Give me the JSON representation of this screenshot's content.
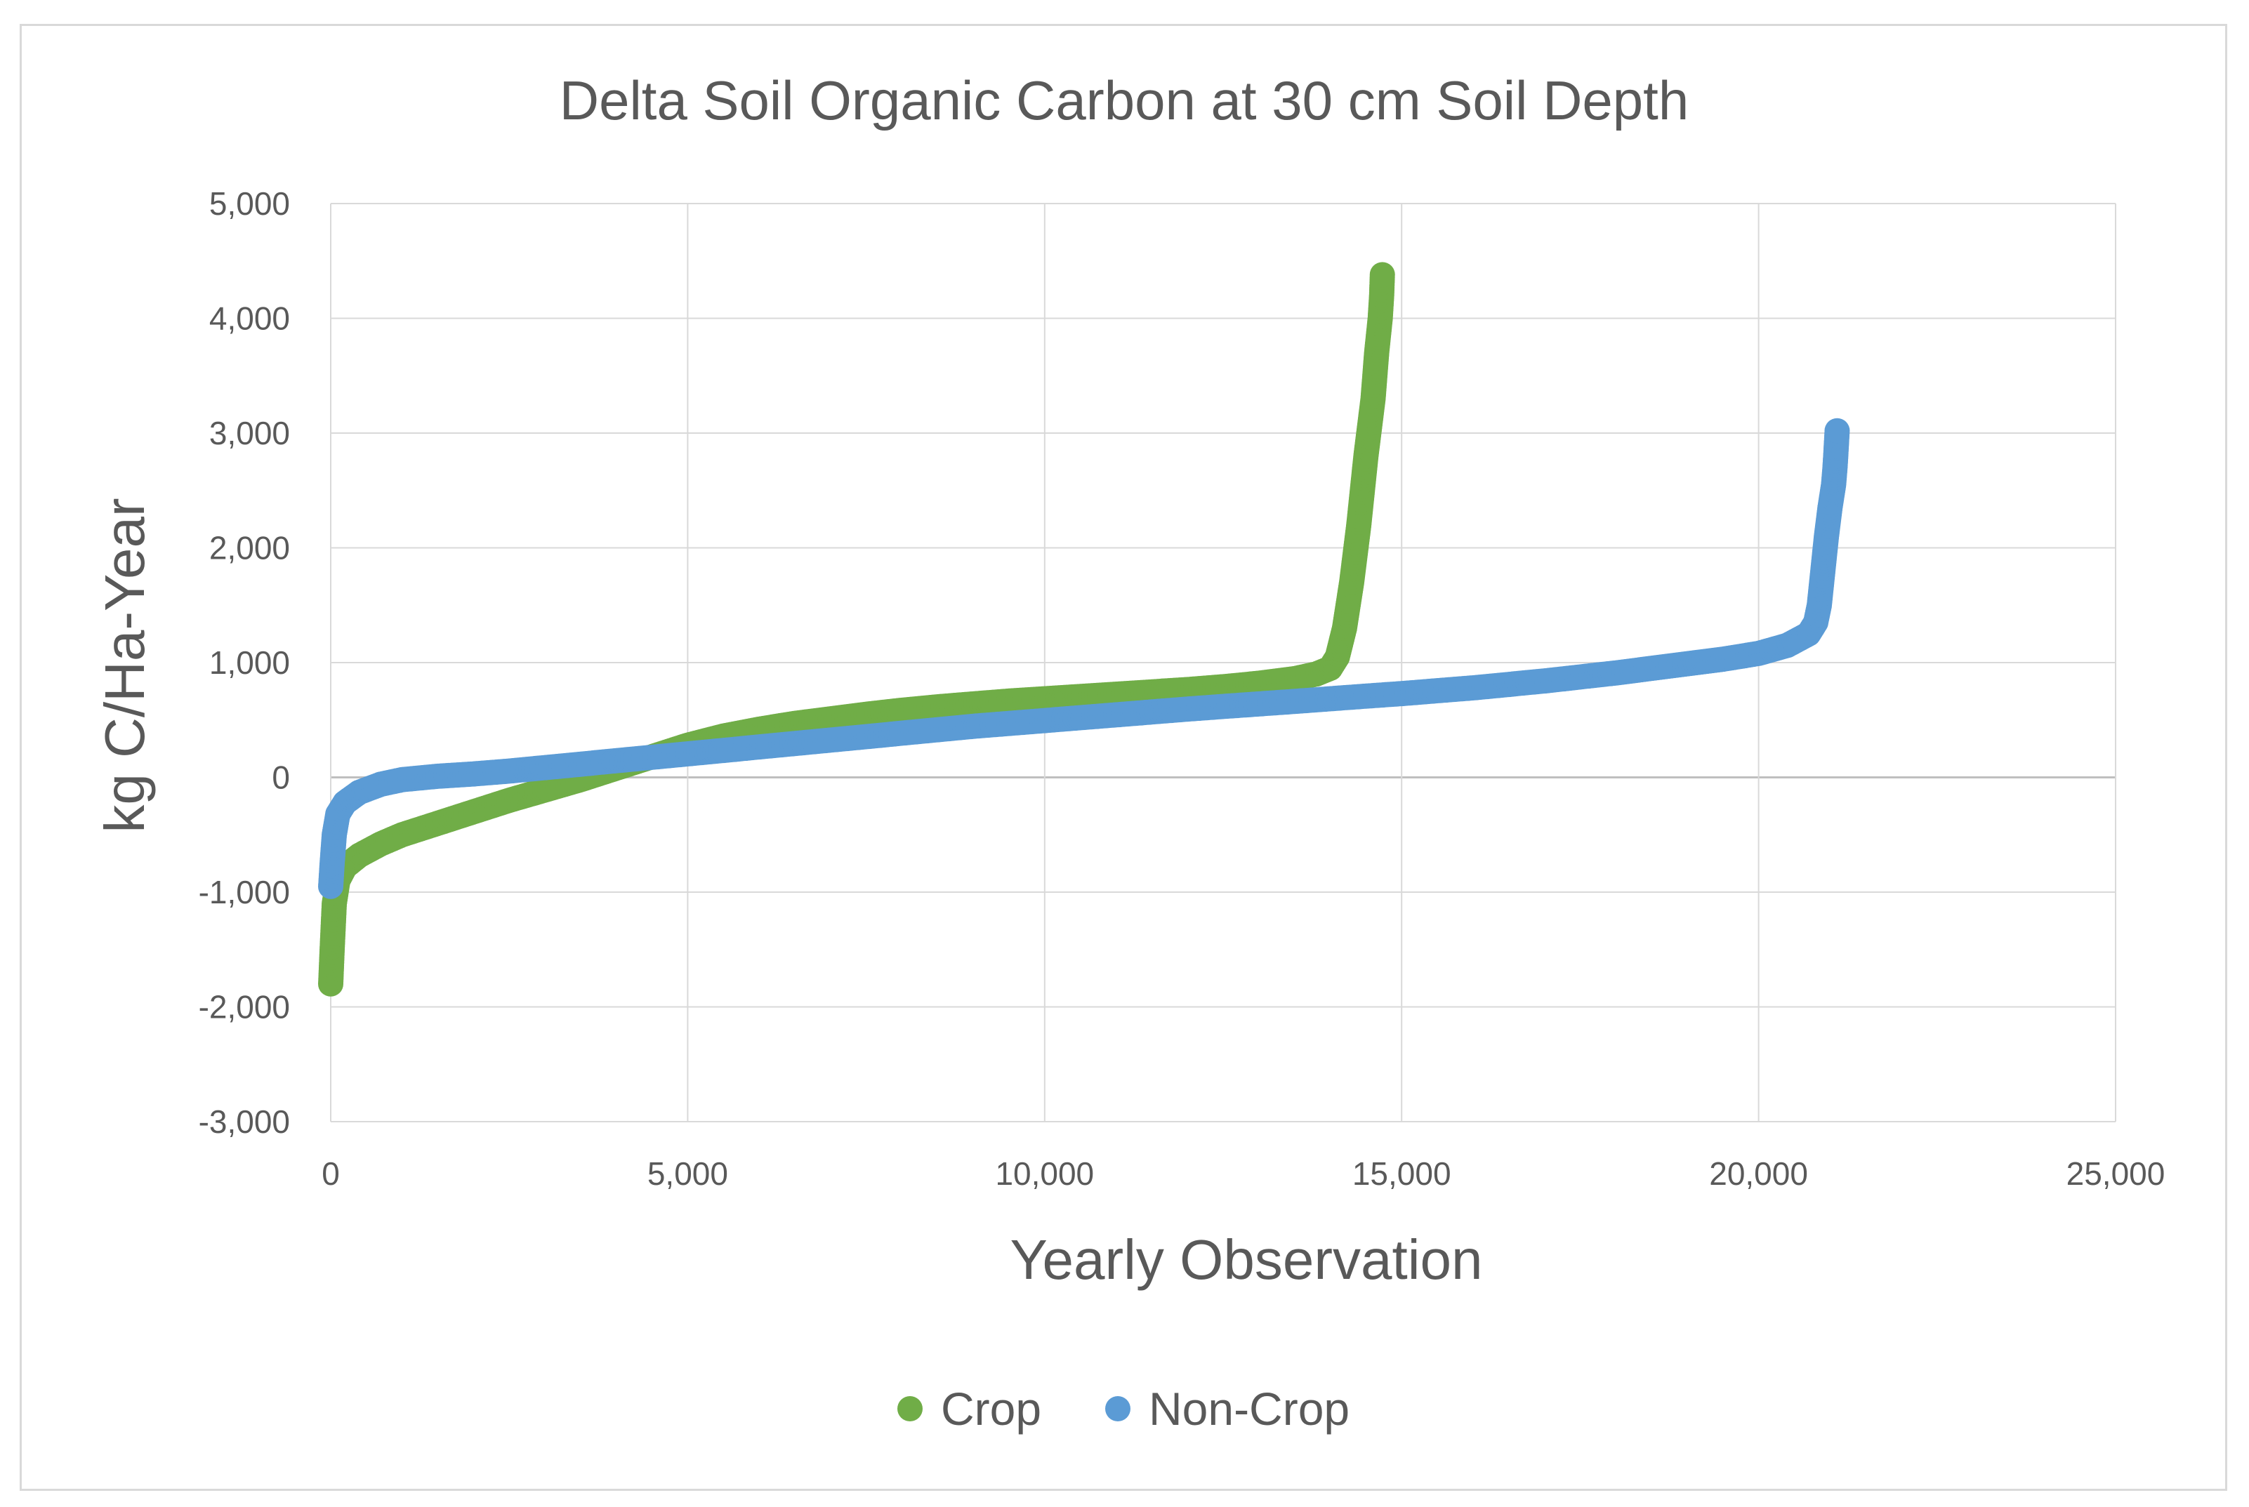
{
  "chart_data": {
    "type": "scatter",
    "title": "Delta Soil Organic Carbon at 30 cm Soil Depth",
    "xlabel": "Yearly Observation",
    "ylabel": "kg C/Ha-Year",
    "xlim": [
      0,
      25000
    ],
    "ylim": [
      -3000,
      5000
    ],
    "x_ticks": [
      0,
      5000,
      10000,
      15000,
      20000,
      25000
    ],
    "x_tick_labels": [
      "0",
      "5,000",
      "10,000",
      "15,000",
      "20,000",
      "25,000"
    ],
    "y_ticks": [
      -3000,
      -2000,
      -1000,
      0,
      1000,
      2000,
      3000,
      4000,
      5000
    ],
    "y_tick_labels": [
      "-3,000",
      "-2,000",
      "-1,000",
      "0",
      "1,000",
      "2,000",
      "3,000",
      "4,000",
      "5,000"
    ],
    "grid": true,
    "legend_position": "bottom",
    "series": [
      {
        "name": "Crop",
        "color": "#70ad47",
        "points": [
          [
            0,
            -1800
          ],
          [
            20,
            -1500
          ],
          [
            50,
            -1100
          ],
          [
            100,
            -900
          ],
          [
            200,
            -780
          ],
          [
            400,
            -680
          ],
          [
            700,
            -580
          ],
          [
            1000,
            -500
          ],
          [
            1500,
            -400
          ],
          [
            2000,
            -300
          ],
          [
            2500,
            -200
          ],
          [
            3000,
            -110
          ],
          [
            3500,
            -20
          ],
          [
            4000,
            80
          ],
          [
            4500,
            180
          ],
          [
            5000,
            280
          ],
          [
            5500,
            360
          ],
          [
            6000,
            420
          ],
          [
            6500,
            470
          ],
          [
            7000,
            510
          ],
          [
            7500,
            550
          ],
          [
            8000,
            585
          ],
          [
            8500,
            615
          ],
          [
            9000,
            640
          ],
          [
            9500,
            665
          ],
          [
            10000,
            685
          ],
          [
            10500,
            705
          ],
          [
            11000,
            725
          ],
          [
            11500,
            745
          ],
          [
            12000,
            765
          ],
          [
            12500,
            790
          ],
          [
            13000,
            820
          ],
          [
            13500,
            860
          ],
          [
            13800,
            900
          ],
          [
            14000,
            950
          ],
          [
            14100,
            1050
          ],
          [
            14200,
            1300
          ],
          [
            14300,
            1700
          ],
          [
            14400,
            2200
          ],
          [
            14500,
            2800
          ],
          [
            14600,
            3300
          ],
          [
            14650,
            3700
          ],
          [
            14700,
            4000
          ],
          [
            14720,
            4200
          ],
          [
            14730,
            4380
          ]
        ]
      },
      {
        "name": "Non-Crop",
        "color": "#5b9bd5",
        "points": [
          [
            0,
            -950
          ],
          [
            20,
            -750
          ],
          [
            50,
            -500
          ],
          [
            100,
            -320
          ],
          [
            200,
            -220
          ],
          [
            400,
            -130
          ],
          [
            700,
            -60
          ],
          [
            1000,
            -20
          ],
          [
            1500,
            10
          ],
          [
            2000,
            30
          ],
          [
            2500,
            55
          ],
          [
            3000,
            85
          ],
          [
            3500,
            115
          ],
          [
            4000,
            145
          ],
          [
            4500,
            175
          ],
          [
            5000,
            205
          ],
          [
            5500,
            235
          ],
          [
            6000,
            265
          ],
          [
            6500,
            295
          ],
          [
            7000,
            325
          ],
          [
            7500,
            355
          ],
          [
            8000,
            385
          ],
          [
            8500,
            415
          ],
          [
            9000,
            445
          ],
          [
            9500,
            470
          ],
          [
            10000,
            495
          ],
          [
            10500,
            520
          ],
          [
            11000,
            545
          ],
          [
            11500,
            570
          ],
          [
            12000,
            595
          ],
          [
            12500,
            618
          ],
          [
            13000,
            640
          ],
          [
            13500,
            662
          ],
          [
            14000,
            685
          ],
          [
            14500,
            708
          ],
          [
            15000,
            730
          ],
          [
            15500,
            755
          ],
          [
            16000,
            780
          ],
          [
            16500,
            810
          ],
          [
            17000,
            840
          ],
          [
            17500,
            875
          ],
          [
            18000,
            910
          ],
          [
            18500,
            950
          ],
          [
            19000,
            990
          ],
          [
            19500,
            1030
          ],
          [
            20000,
            1080
          ],
          [
            20400,
            1150
          ],
          [
            20700,
            1250
          ],
          [
            20800,
            1350
          ],
          [
            20850,
            1500
          ],
          [
            20900,
            1800
          ],
          [
            20950,
            2100
          ],
          [
            21000,
            2350
          ],
          [
            21050,
            2550
          ],
          [
            21070,
            2700
          ],
          [
            21080,
            2800
          ],
          [
            21100,
            3020
          ]
        ]
      }
    ]
  }
}
